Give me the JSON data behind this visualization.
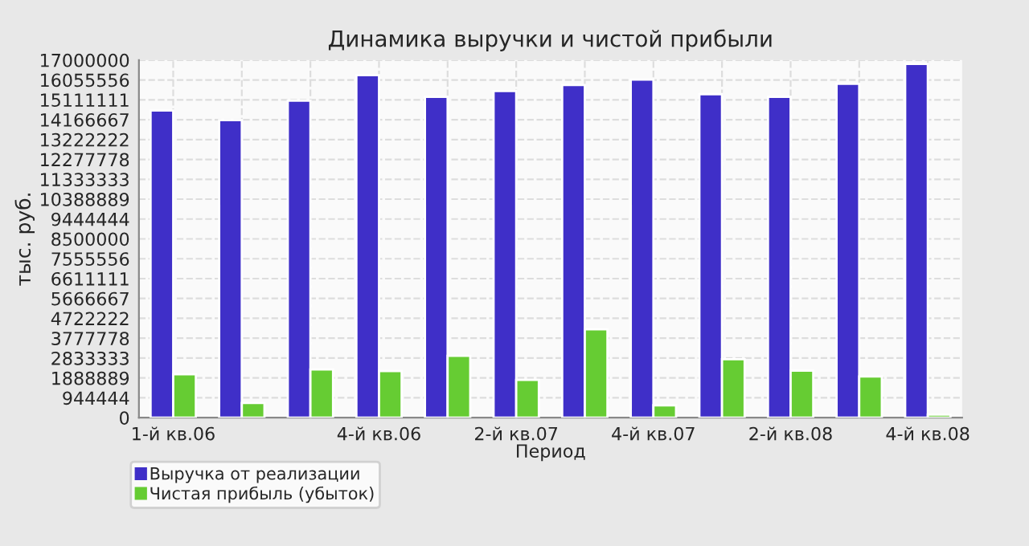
{
  "chart_data": {
    "type": "bar",
    "title": "Динамика выручки и чистой прибыли",
    "xlabel": "Период",
    "ylabel": "тыс. руб.",
    "categories": [
      "1-й кв.06",
      null,
      null,
      "4-й кв.06",
      null,
      "2-й кв.07",
      null,
      "4-й кв.07",
      null,
      "2-й кв.08",
      null,
      "4-й кв.08"
    ],
    "series": [
      {
        "name": "Выручка от реализации",
        "color": "#3f2fc8",
        "values": [
          14600000,
          14140000,
          15070000,
          16280000,
          15250000,
          15530000,
          15810000,
          16070000,
          15380000,
          15250000,
          15870000,
          16820000
        ]
      },
      {
        "name": "Чистая прибыль (убыток)",
        "color": "#66cc33",
        "values": [
          2060000,
          700000,
          2290000,
          2220000,
          2940000,
          1800000,
          4200000,
          590000,
          2780000,
          2240000,
          1960000,
          150000
        ]
      }
    ],
    "ylim": [
      0,
      17000000
    ],
    "yticks": [
      0,
      944444,
      1888889,
      2833333,
      3777778,
      4722222,
      5666667,
      6611111,
      7555556,
      8500000,
      9444444,
      10388889,
      11333333,
      12277778,
      13222222,
      14166667,
      15111111,
      16055556,
      17000000
    ],
    "grid": true,
    "legend": "bottom left"
  }
}
